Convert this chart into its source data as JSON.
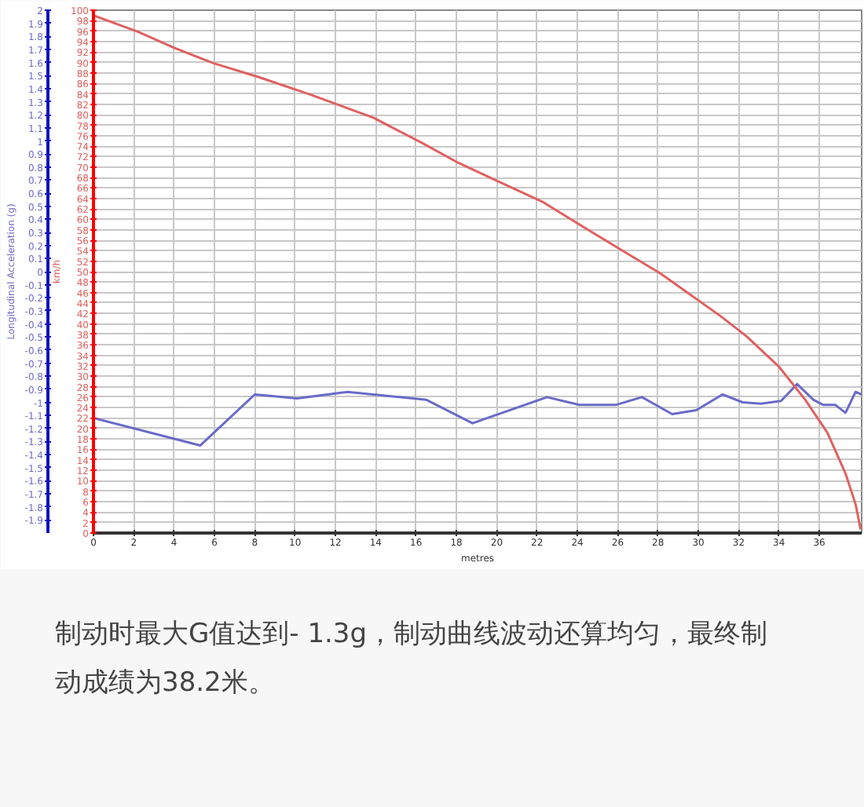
{
  "chart_data": {
    "type": "line",
    "xlabel": "metres",
    "ylabel": "Longitudinal Acceleration (g)",
    "y2label": "km/h",
    "xlim": [
      0,
      38.1
    ],
    "xticks": [
      0,
      2,
      4,
      6,
      8,
      10,
      12,
      14,
      16,
      18,
      20,
      22,
      24,
      26,
      28,
      30,
      32,
      34,
      36
    ],
    "ylim": [
      -2,
      2
    ],
    "yticks": [
      2,
      1.9,
      1.8,
      1.7,
      1.6,
      1.5,
      1.4,
      1.3,
      1.2,
      1.1,
      1,
      0.9,
      0.8,
      0.7,
      0.6,
      0.5,
      0.4,
      0.3,
      0.2,
      0.1,
      0,
      -0.1,
      -0.2,
      -0.3,
      -0.4,
      -0.5,
      -0.6,
      -0.7,
      -0.8,
      -0.9,
      -1,
      -1.1,
      -1.2,
      -1.3,
      -1.4,
      -1.5,
      -1.6,
      -1.7,
      -1.8,
      -1.9
    ],
    "y2lim": [
      0,
      100
    ],
    "y2ticks": [
      0,
      2,
      4,
      6,
      8,
      10,
      12,
      14,
      16,
      18,
      20,
      22,
      24,
      26,
      28,
      30,
      32,
      34,
      36,
      38,
      40,
      42,
      44,
      46,
      48,
      50,
      52,
      54,
      56,
      58,
      60,
      62,
      64,
      66,
      68,
      70,
      72,
      74,
      76,
      78,
      80,
      82,
      84,
      86,
      88,
      90,
      92,
      94,
      96,
      98,
      100
    ],
    "grid": true,
    "series": [
      {
        "color": "#6a6ac8",
        "x": [
          0,
          5.3,
          8.0,
          10.1,
          12.6,
          16.5,
          18.8,
          22.5,
          24.1,
          25.9,
          27.2,
          28.7,
          29.9,
          31.2,
          32.2,
          33.1,
          34.1,
          34.9,
          35.7,
          36.2,
          36.8,
          37.3,
          37.8,
          38.1
        ],
        "values": [
          -1.12,
          -1.33,
          -0.94,
          -0.97,
          -0.92,
          -0.98,
          -1.16,
          -0.96,
          -1.02,
          -1.02,
          -0.96,
          -1.09,
          -1.06,
          -0.94,
          -1.0,
          -1.01,
          -0.99,
          -0.86,
          -0.98,
          -1.02,
          -1.02,
          -1.08,
          -0.92,
          -0.94
        ]
      },
      {
        "color": "#e06060",
        "axis": "y2",
        "x": [
          0,
          2.2,
          4.0,
          6.0,
          8.2,
          10.8,
          13.9,
          16.3,
          18.1,
          20.1,
          22.3,
          24.1,
          26.2,
          28.1,
          28.8,
          31.1,
          32.4,
          34.0,
          35.3,
          36.4,
          37.3,
          37.8,
          38.05
        ],
        "values": [
          99,
          95.9,
          92.8,
          89.8,
          87.2,
          83.8,
          79.4,
          74.6,
          70.8,
          67.2,
          63.3,
          59.0,
          54.1,
          49.7,
          47.8,
          41.5,
          37.6,
          31.8,
          25.5,
          19.2,
          11.4,
          5.5,
          0.7
        ]
      }
    ],
    "annotations": [
      "制动时最大G值达到- 1.3g，制动曲线波动还算均匀，最终制动成绩为38.2米。"
    ]
  }
}
